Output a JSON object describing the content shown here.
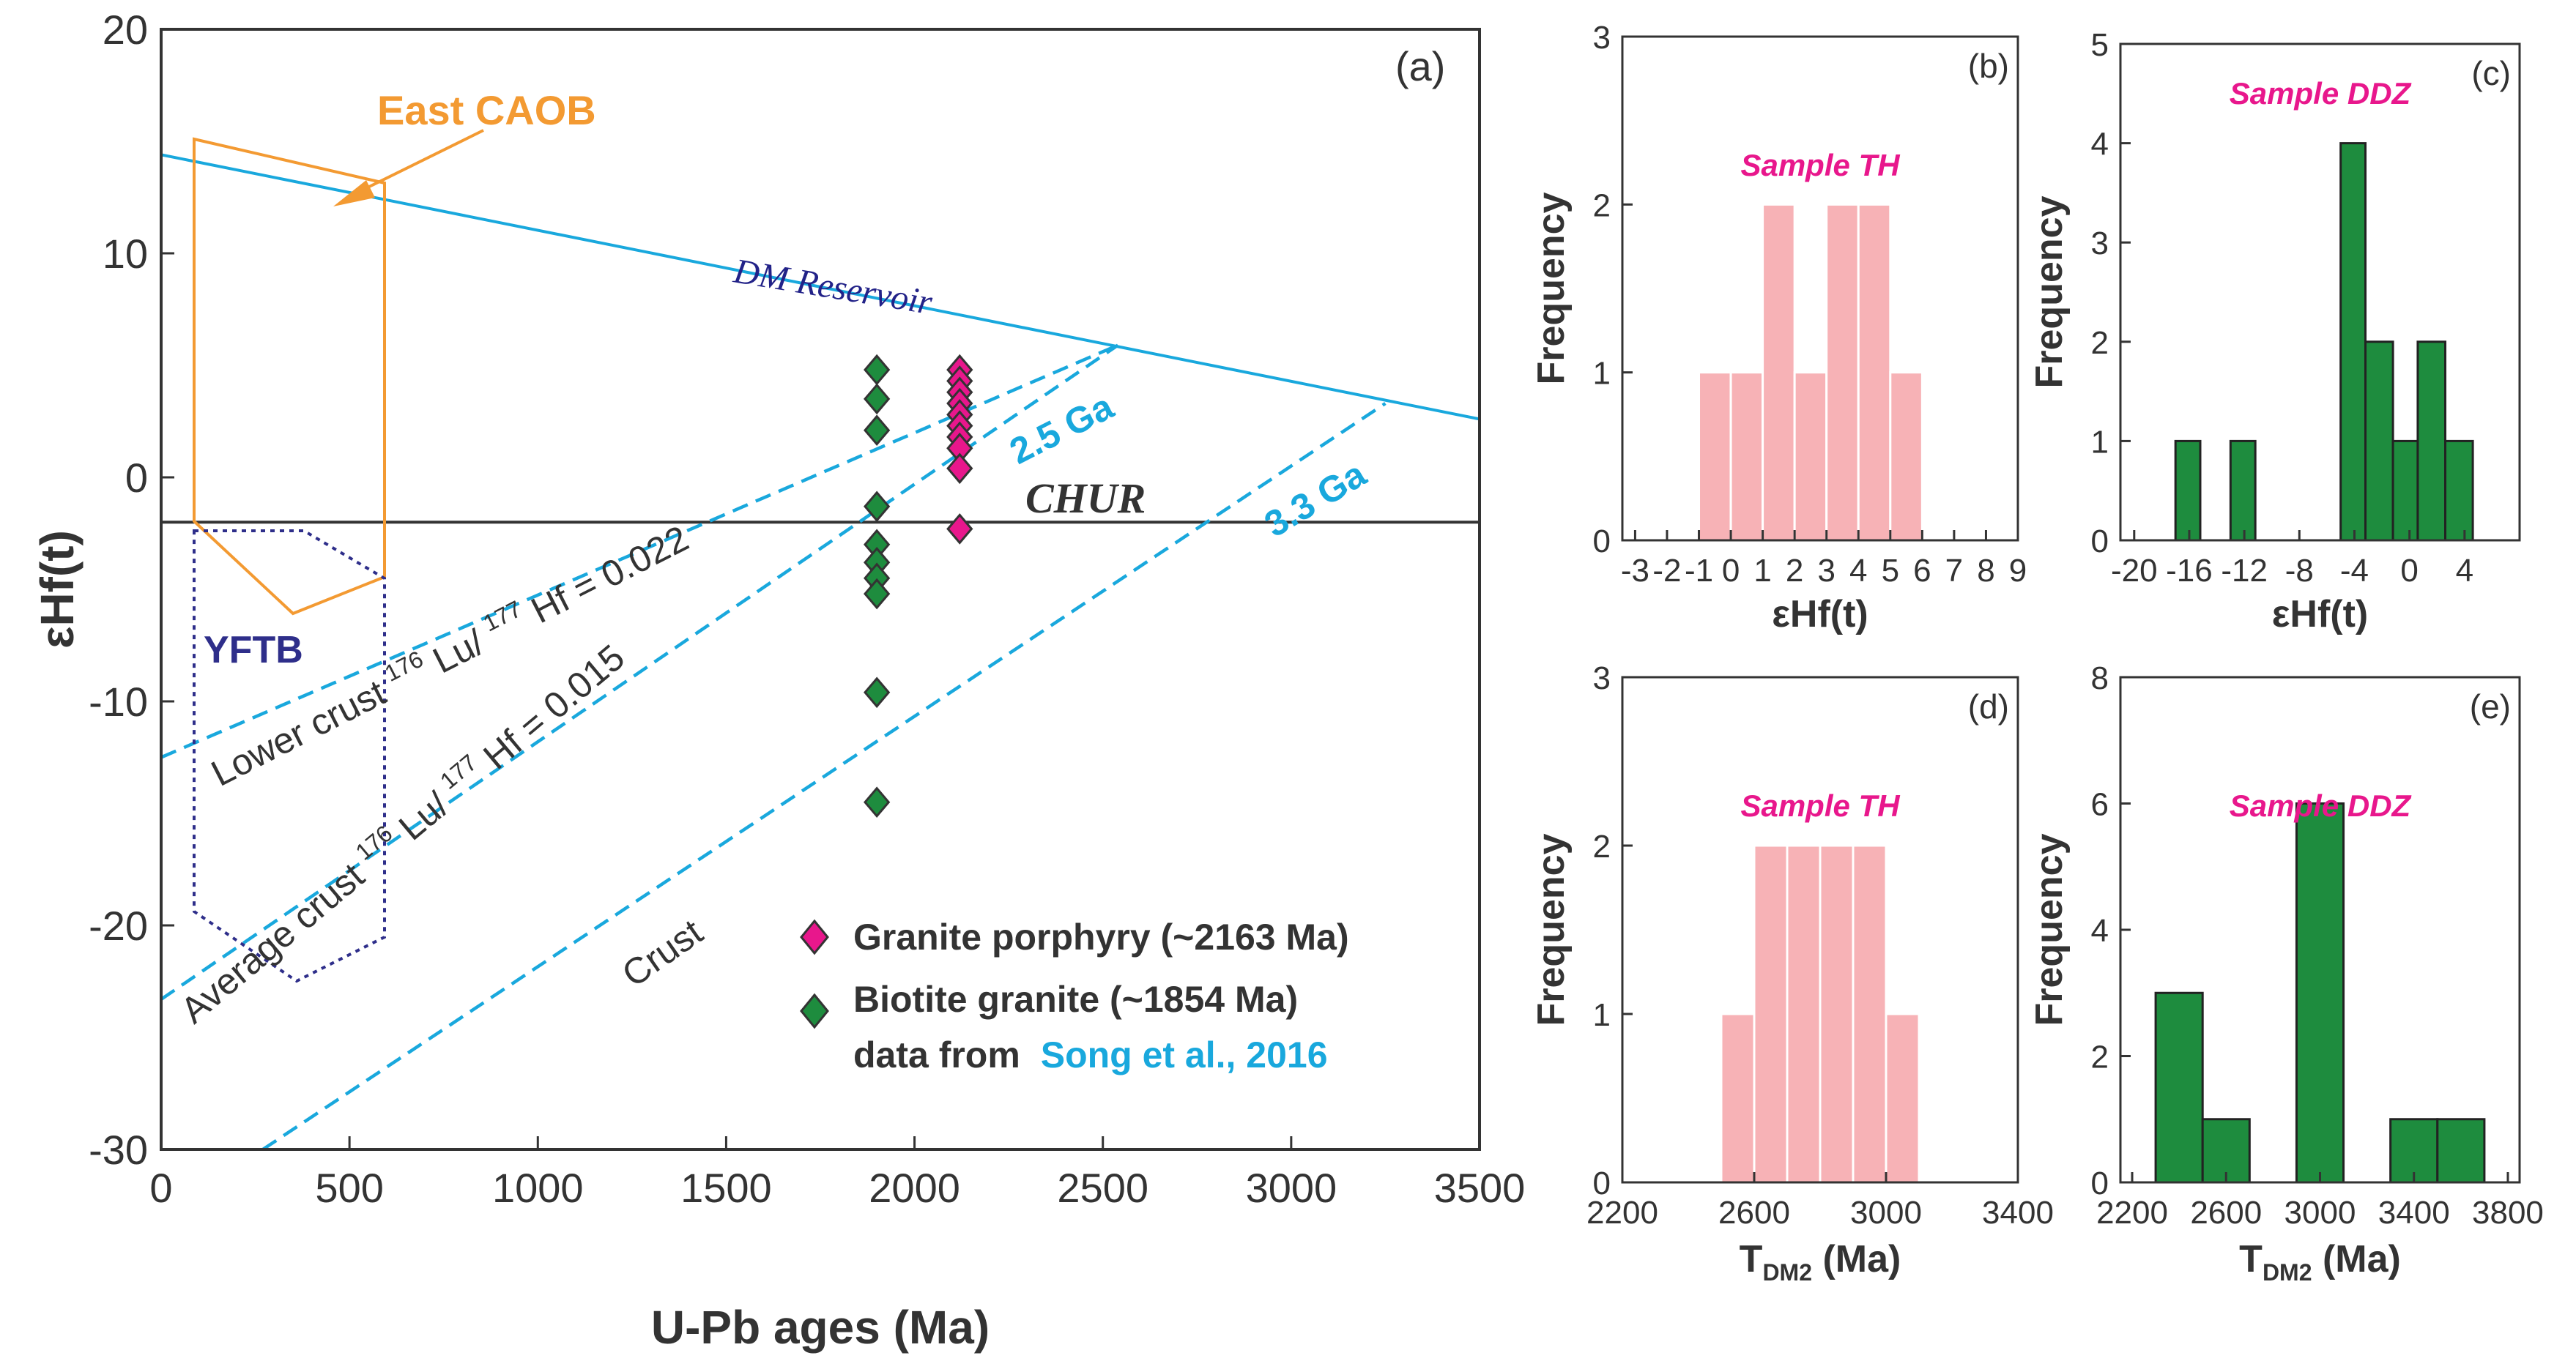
{
  "chart_data": [
    {
      "panel": "(a)",
      "type": "scatter",
      "xlabel": "U-Pb ages (Ma)",
      "ylabel": "εHf(t)",
      "xlim": [
        0,
        3500
      ],
      "ylim": [
        -30,
        20
      ],
      "xticks": [
        0,
        500,
        1000,
        1500,
        2000,
        2500,
        3000,
        3500
      ],
      "yticks": [
        20,
        10,
        0,
        -10,
        -20,
        -30
      ],
      "lines": [
        {
          "name": "DM Reservoir",
          "label": "DM Reservoir",
          "style": "solid",
          "color": "#19a8dd",
          "x": [
            0,
            3500
          ],
          "y": [
            14.4,
            2.6
          ]
        },
        {
          "name": "CHUR",
          "label": "CHUR",
          "style": "solid",
          "color": "#333333",
          "x": [
            0,
            3500
          ],
          "y": [
            -2,
            -2
          ]
        },
        {
          "name": "2.5 Ga lower crust",
          "label": "2.5 Ga",
          "style": "dashed",
          "color": "#19a8dd",
          "x": [
            0,
            2540
          ],
          "y": [
            -12.5,
            5.9
          ]
        },
        {
          "name": "2.5 Ga average crust",
          "style": "dashed",
          "color": "#19a8dd",
          "x": [
            0,
            2540
          ],
          "y": [
            -23.3,
            5.9
          ]
        },
        {
          "name": "3.3 Ga crust",
          "label": "3.3 Ga",
          "style": "dashed",
          "color": "#19a8dd",
          "x": [
            270,
            3250
          ],
          "y": [
            -30,
            3.3
          ]
        }
      ],
      "line_labels": {
        "lower_crust": "Lower crust",
        "lower_crust_ratio": "Lu/",
        "lower_crust_value": "Hf = 0.022",
        "average_crust": "Average crust",
        "average_crust_ratio": "Lu/",
        "average_crust_value": "Hf = 0.015",
        "sup_lu": "176",
        "sup_hf": "177",
        "crust": "Crust"
      },
      "series": [
        {
          "name": "Granite porphyry (~2163 Ma)",
          "marker": "diamond",
          "color": "#e8178c",
          "x": [
            2120,
            2120,
            2120,
            2120,
            2120,
            2120,
            2120,
            2120,
            2120,
            2120
          ],
          "y": [
            4.8,
            4.3,
            3.8,
            3.3,
            2.8,
            2.3,
            1.8,
            1.3,
            0.4,
            -2.3
          ]
        },
        {
          "name": "Biotite granite (~1854 Ma)",
          "marker": "diamond",
          "color": "#1e8c3e",
          "x": [
            1900,
            1900,
            1900,
            1900,
            1900,
            1900,
            1900,
            1900,
            1900,
            1900
          ],
          "y": [
            4.8,
            3.5,
            2.1,
            -1.3,
            -3.0,
            -3.8,
            -4.5,
            -5.2,
            -9.6,
            -14.5
          ]
        }
      ],
      "legend": [
        {
          "label": "Granite porphyry (~2163 Ma)",
          "color": "#e8178c"
        },
        {
          "label": "Biotite granite (~1854 Ma)",
          "color": "#1e8c3e"
        }
      ],
      "legend_note": "data from",
      "legend_citation": "Song et al., 2016",
      "fields": [
        {
          "name": "East CAOB",
          "color": "#f39a32",
          "style": "solid"
        },
        {
          "name": "YFTB",
          "color": "#2e2e8a",
          "style": "dotted"
        }
      ]
    },
    {
      "panel": "(b)",
      "type": "bar",
      "sample": "Sample TH",
      "xlabel": "εHf(t)",
      "ylabel": "Frequency",
      "xlim": [
        -3.4,
        9
      ],
      "ylim": [
        0,
        3
      ],
      "xticks": [
        -3,
        -2,
        -1,
        0,
        1,
        2,
        3,
        4,
        5,
        6,
        7,
        8,
        9
      ],
      "xtick_labels": [
        "-3",
        "-2",
        "-1",
        "0",
        "1",
        "2",
        "3",
        "4",
        "5",
        "6",
        "7",
        "8",
        "9"
      ],
      "yticks": [
        0,
        1,
        2,
        3
      ],
      "color": "#f7b2b6",
      "bins": [
        [
          -1,
          0,
          1
        ],
        [
          0,
          1,
          1
        ],
        [
          1,
          2,
          2
        ],
        [
          2,
          3,
          1
        ],
        [
          3,
          4,
          2
        ],
        [
          4,
          5,
          2
        ],
        [
          5,
          6,
          1
        ]
      ]
    },
    {
      "panel": "(c)",
      "type": "bar",
      "sample": "Sample DDZ",
      "xlabel": "εHf(t)",
      "ylabel": "Frequency",
      "xlim": [
        -21,
        8
      ],
      "ylim": [
        0,
        5
      ],
      "xticks": [
        -20,
        -16,
        -12,
        -8,
        -4,
        0,
        4
      ],
      "xtick_labels": [
        "-20",
        "-16",
        "-12",
        "-8",
        "-4",
        "0",
        "4"
      ],
      "yticks": [
        0,
        1,
        2,
        3,
        4,
        5
      ],
      "color": "#1e8c3e",
      "bins": [
        [
          -17,
          -15.2,
          1
        ],
        [
          -13,
          -11.2,
          1
        ],
        [
          -5,
          -3.2,
          4
        ],
        [
          -3.2,
          -1.2,
          2
        ],
        [
          -1.2,
          0.6,
          1
        ],
        [
          0.6,
          2.6,
          2
        ],
        [
          2.6,
          4.6,
          1
        ]
      ]
    },
    {
      "panel": "(d)",
      "type": "bar",
      "sample": "Sample TH",
      "xlabel_main": "T",
      "xlabel_sub": "DM2",
      "xlabel_unit": " (Ma)",
      "ylabel": "Frequency",
      "xlim": [
        2200,
        3400
      ],
      "ylim": [
        0,
        3
      ],
      "xticks": [
        2200,
        2600,
        3000,
        3400
      ],
      "xtick_labels": [
        "2200",
        "2600",
        "3000",
        "3400"
      ],
      "yticks": [
        0,
        1,
        2,
        3
      ],
      "color": "#f7b2b6",
      "bins": [
        [
          2500,
          2600,
          1
        ],
        [
          2600,
          2700,
          2
        ],
        [
          2700,
          2800,
          2
        ],
        [
          2800,
          2900,
          2
        ],
        [
          2900,
          3000,
          2
        ],
        [
          3000,
          3100,
          1
        ]
      ]
    },
    {
      "panel": "(e)",
      "type": "bar",
      "sample": "Sample DDZ",
      "xlabel_main": "T",
      "xlabel_sub": "DM2",
      "xlabel_unit": " (Ma)",
      "ylabel": "Frequency",
      "xlim": [
        2150,
        3850
      ],
      "ylim": [
        0,
        8
      ],
      "xticks": [
        2200,
        2600,
        3000,
        3400,
        3800
      ],
      "xtick_labels": [
        "2200",
        "2600",
        "3000",
        "3400",
        "3800"
      ],
      "yticks": [
        0,
        2,
        4,
        6,
        8
      ],
      "color": "#1e8c3e",
      "bins": [
        [
          2300,
          2500,
          3
        ],
        [
          2500,
          2700,
          1
        ],
        [
          2900,
          3100,
          6
        ],
        [
          3300,
          3500,
          1
        ],
        [
          3500,
          3700,
          1
        ]
      ]
    }
  ]
}
